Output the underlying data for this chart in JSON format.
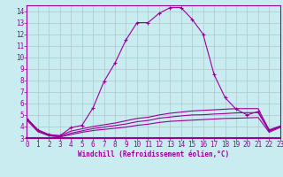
{
  "bg_color": "#c8ecf0",
  "grid_color": "#b0c8cc",
  "line_color": "#990099",
  "xlabel": "Windchill (Refroidissement éolien,°C)",
  "xlim": [
    0,
    23
  ],
  "ylim": [
    3,
    14.5
  ],
  "yticks": [
    3,
    4,
    5,
    6,
    7,
    8,
    9,
    10,
    11,
    12,
    13,
    14
  ],
  "xticks": [
    0,
    1,
    2,
    3,
    4,
    5,
    6,
    7,
    8,
    9,
    10,
    11,
    12,
    13,
    14,
    15,
    16,
    17,
    18,
    19,
    20,
    21,
    22,
    23
  ],
  "series1_x": [
    0,
    1,
    2,
    3,
    4,
    5,
    6,
    7,
    8,
    9,
    10,
    11,
    12,
    13,
    14,
    15,
    16,
    17,
    18,
    19,
    20,
    21,
    22,
    23
  ],
  "series1_y": [
    4.7,
    3.7,
    3.3,
    3.2,
    3.9,
    4.1,
    5.6,
    7.9,
    9.5,
    11.5,
    13.0,
    13.0,
    13.8,
    14.3,
    14.3,
    13.3,
    12.0,
    8.5,
    6.5,
    5.5,
    5.0,
    5.3,
    3.7,
    4.0
  ],
  "series2_x": [
    0,
    1,
    2,
    3,
    4,
    5,
    6,
    7,
    8,
    9,
    10,
    11,
    12,
    13,
    14,
    15,
    16,
    17,
    18,
    19,
    20,
    21,
    22,
    23
  ],
  "series2_y": [
    4.7,
    3.7,
    3.3,
    3.2,
    3.6,
    3.8,
    4.0,
    4.15,
    4.3,
    4.5,
    4.7,
    4.8,
    5.0,
    5.15,
    5.25,
    5.35,
    5.4,
    5.45,
    5.5,
    5.55,
    5.55,
    5.55,
    3.7,
    4.05
  ],
  "series3_x": [
    0,
    1,
    2,
    3,
    4,
    5,
    6,
    7,
    8,
    9,
    10,
    11,
    12,
    13,
    14,
    15,
    16,
    17,
    18,
    19,
    20,
    21,
    22,
    23
  ],
  "series3_y": [
    4.55,
    3.55,
    3.2,
    3.1,
    3.3,
    3.5,
    3.65,
    3.75,
    3.85,
    3.95,
    4.1,
    4.2,
    4.35,
    4.45,
    4.5,
    4.55,
    4.6,
    4.65,
    4.7,
    4.72,
    4.75,
    4.78,
    3.5,
    3.92
  ],
  "series4_x": [
    0,
    1,
    2,
    3,
    4,
    5,
    6,
    7,
    8,
    9,
    10,
    11,
    12,
    13,
    14,
    15,
    16,
    17,
    18,
    19,
    20,
    21,
    22,
    23
  ],
  "series4_y": [
    4.62,
    3.62,
    3.22,
    3.12,
    3.42,
    3.62,
    3.82,
    3.95,
    4.08,
    4.22,
    4.42,
    4.52,
    4.72,
    4.82,
    4.92,
    5.0,
    5.02,
    5.08,
    5.12,
    5.18,
    5.2,
    5.2,
    3.6,
    3.98
  ]
}
